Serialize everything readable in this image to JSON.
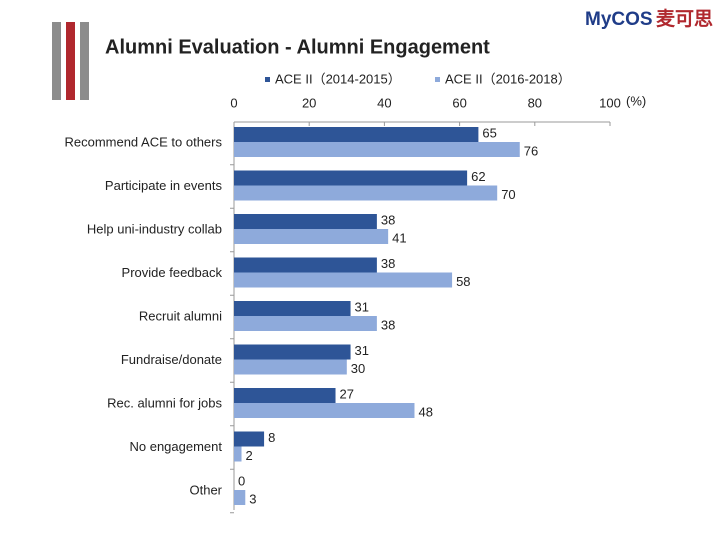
{
  "chart_data": {
    "type": "bar",
    "orientation": "horizontal",
    "title": "Alumni Evaluation - Alumni Engagement",
    "logo": "MyCOS",
    "logo_cn": "麦可思",
    "x_label": "(%)",
    "categories": [
      "Recommend ACE to others",
      "Participate in events",
      "Help uni-industry collab",
      "Provide feedback",
      "Recruit alumni",
      "Fundraise/donate",
      "Rec. alumni for jobs",
      "No engagement",
      "Other"
    ],
    "series": [
      {
        "name": "ACE II（2014-2015）",
        "color": "#2e5597",
        "values": [
          65,
          62,
          38,
          38,
          31,
          31,
          27,
          8,
          0
        ]
      },
      {
        "name": "ACE II（2016-2018）",
        "color": "#8eaadb",
        "values": [
          76,
          70,
          41,
          58,
          38,
          30,
          48,
          2,
          3
        ]
      }
    ],
    "xlim": [
      0,
      100
    ],
    "xticks": [
      0,
      20,
      40,
      60,
      80,
      100
    ]
  }
}
